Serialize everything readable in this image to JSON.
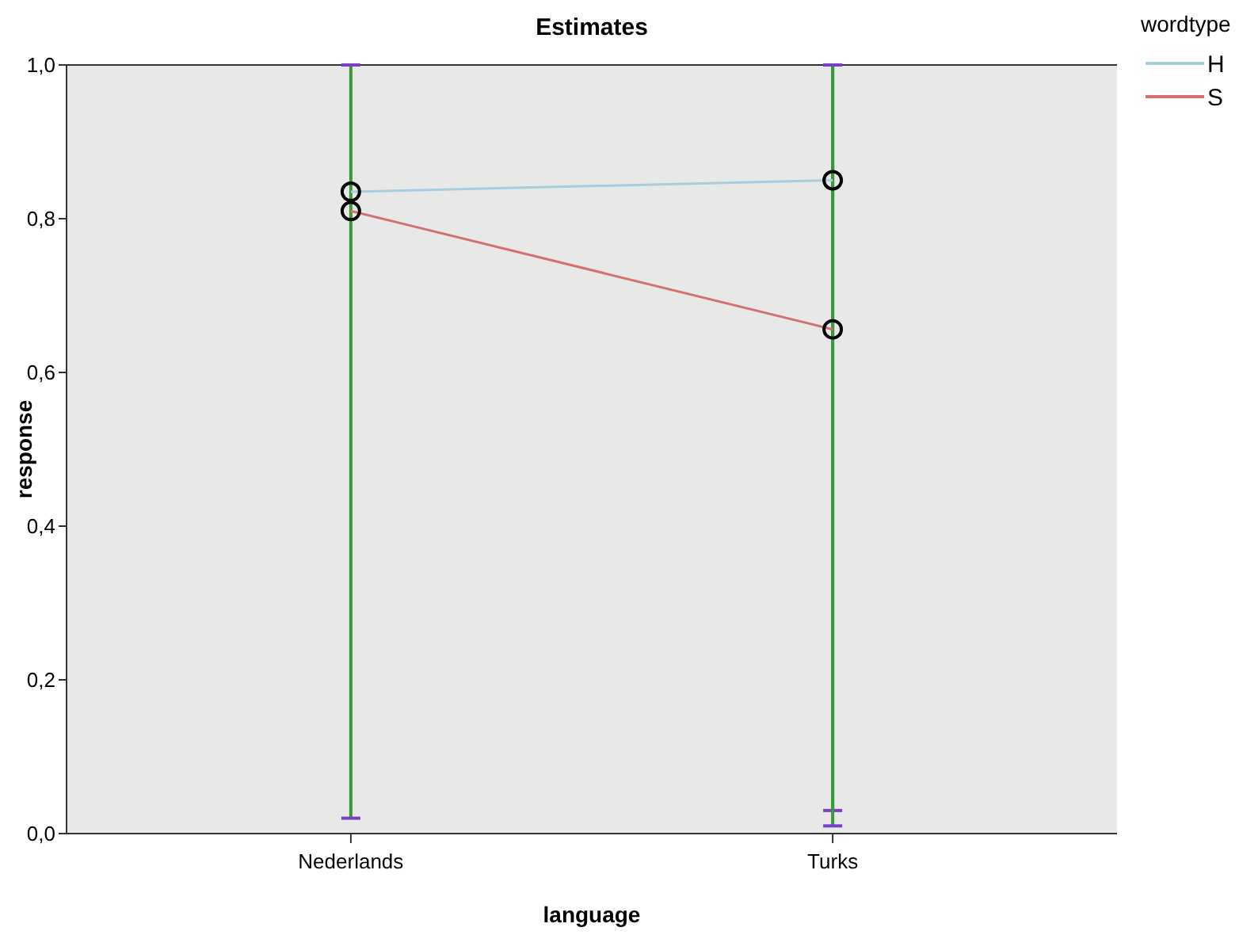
{
  "chart_data": {
    "type": "line",
    "title": "Estimates",
    "xlabel": "language",
    "ylabel": "response",
    "legend_title": "wordtype",
    "categories": [
      "Nederlands",
      "Turks"
    ],
    "series": [
      {
        "name": "H",
        "color": "#a8cde0",
        "values": [
          0.835,
          0.85
        ],
        "errors": [
          [
            0.02,
            1.0
          ],
          [
            0.03,
            1.0
          ]
        ]
      },
      {
        "name": "S",
        "color": "#d47070",
        "values": [
          0.81,
          0.656
        ],
        "errors": [
          [
            0.02,
            1.0
          ],
          [
            0.01,
            1.0
          ]
        ]
      }
    ],
    "ylim": [
      0,
      1
    ],
    "yticks": [
      {
        "value": 0,
        "label": "0,0"
      },
      {
        "value": 0.2,
        "label": "0,2"
      },
      {
        "value": 0.4,
        "label": "0,4"
      },
      {
        "value": 0.6,
        "label": "0,6"
      },
      {
        "value": 0.8,
        "label": "0,8"
      },
      {
        "value": 1,
        "label": "1,0"
      }
    ],
    "marker": "circle",
    "legend": "right",
    "grid": false,
    "line_style": "solid"
  }
}
